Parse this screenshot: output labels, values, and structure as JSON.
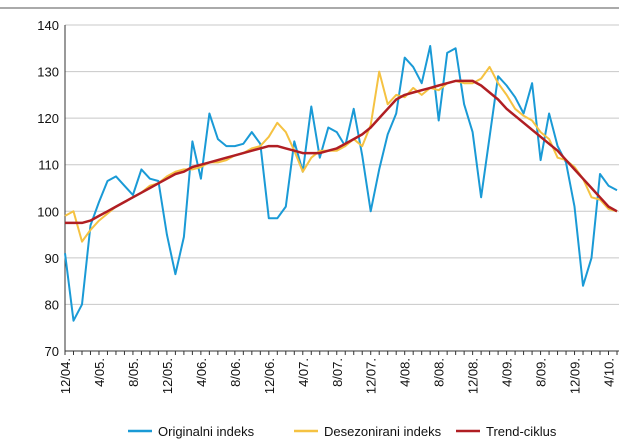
{
  "chart_data": {
    "type": "line",
    "categories": [
      "12/04.",
      null,
      null,
      null,
      "4/05.",
      null,
      null,
      null,
      "8/05.",
      null,
      null,
      null,
      "12/05.",
      null,
      null,
      null,
      "4/06.",
      null,
      null,
      null,
      "8/06.",
      null,
      null,
      null,
      "12/06.",
      null,
      null,
      null,
      "4/07.",
      null,
      null,
      null,
      "8/07.",
      null,
      null,
      null,
      "12/07.",
      null,
      null,
      null,
      "4/08.",
      null,
      null,
      null,
      "8/08.",
      null,
      null,
      null,
      "12/08.",
      null,
      null,
      null,
      "4/09.",
      null,
      null,
      null,
      "8/09.",
      null,
      null,
      null,
      "12/09.",
      null,
      null,
      null,
      "4/10.",
      null
    ],
    "series": [
      {
        "name": "Originalni indeks",
        "color": "#1a9ad6",
        "values": [
          91,
          76.5,
          80,
          97,
          102,
          106.5,
          107.5,
          105.5,
          103.5,
          109,
          107,
          106.5,
          95,
          86.5,
          94.5,
          115,
          107,
          121,
          115.5,
          114,
          114,
          114.5,
          117,
          114.5,
          98.5,
          98.5,
          101,
          115,
          108.5,
          122.5,
          111.5,
          118,
          117,
          114,
          122,
          112,
          100,
          109,
          116.5,
          121,
          133,
          131,
          127.5,
          135.5,
          119.5,
          134,
          135,
          123,
          117,
          103,
          116,
          129,
          127,
          124.5,
          121,
          127.5,
          111,
          121,
          114,
          110.5,
          101,
          84,
          90,
          108,
          105.5,
          104.5
        ]
      },
      {
        "name": "Desezonirani indeks",
        "color": "#f5c242",
        "values": [
          99,
          100,
          93.5,
          96,
          98,
          99.5,
          101,
          102,
          103,
          104,
          105.5,
          106,
          107.5,
          108.5,
          109,
          109,
          109.5,
          110.5,
          110.5,
          111,
          112,
          112.5,
          113.5,
          114,
          116,
          119,
          117,
          113,
          108.5,
          111.5,
          113,
          113,
          113,
          114,
          115.5,
          114,
          118.5,
          130,
          123,
          125,
          124.5,
          126.5,
          125,
          126.5,
          126,
          127.5,
          128,
          127.5,
          127.5,
          128.5,
          131,
          127.5,
          125,
          122,
          120.5,
          119.5,
          117,
          115.5,
          111.5,
          111,
          109.5,
          107,
          103,
          102.5,
          100.5,
          100
        ]
      },
      {
        "name": "Trend-ciklus",
        "color": "#b01e23",
        "values": [
          97.5,
          97.5,
          97.5,
          98,
          99,
          100,
          101,
          102,
          103,
          104,
          105,
          106,
          107,
          108,
          108.5,
          109.5,
          110,
          110.5,
          111,
          111.5,
          112,
          112.5,
          113,
          113.5,
          114,
          114,
          113.5,
          113,
          112.5,
          112.5,
          112.5,
          113,
          113.5,
          114.5,
          115.5,
          116.5,
          118,
          120,
          122,
          124,
          125,
          125.5,
          126,
          126.5,
          127,
          127.5,
          128,
          128,
          128,
          127,
          125.5,
          124,
          122,
          120.5,
          119,
          117.5,
          116,
          114.5,
          113,
          111,
          109,
          107,
          105,
          103,
          101,
          100
        ]
      }
    ],
    "ylim": [
      70,
      140
    ],
    "yticks": [
      70,
      80,
      90,
      100,
      110,
      120,
      130,
      140
    ],
    "grid": true
  }
}
